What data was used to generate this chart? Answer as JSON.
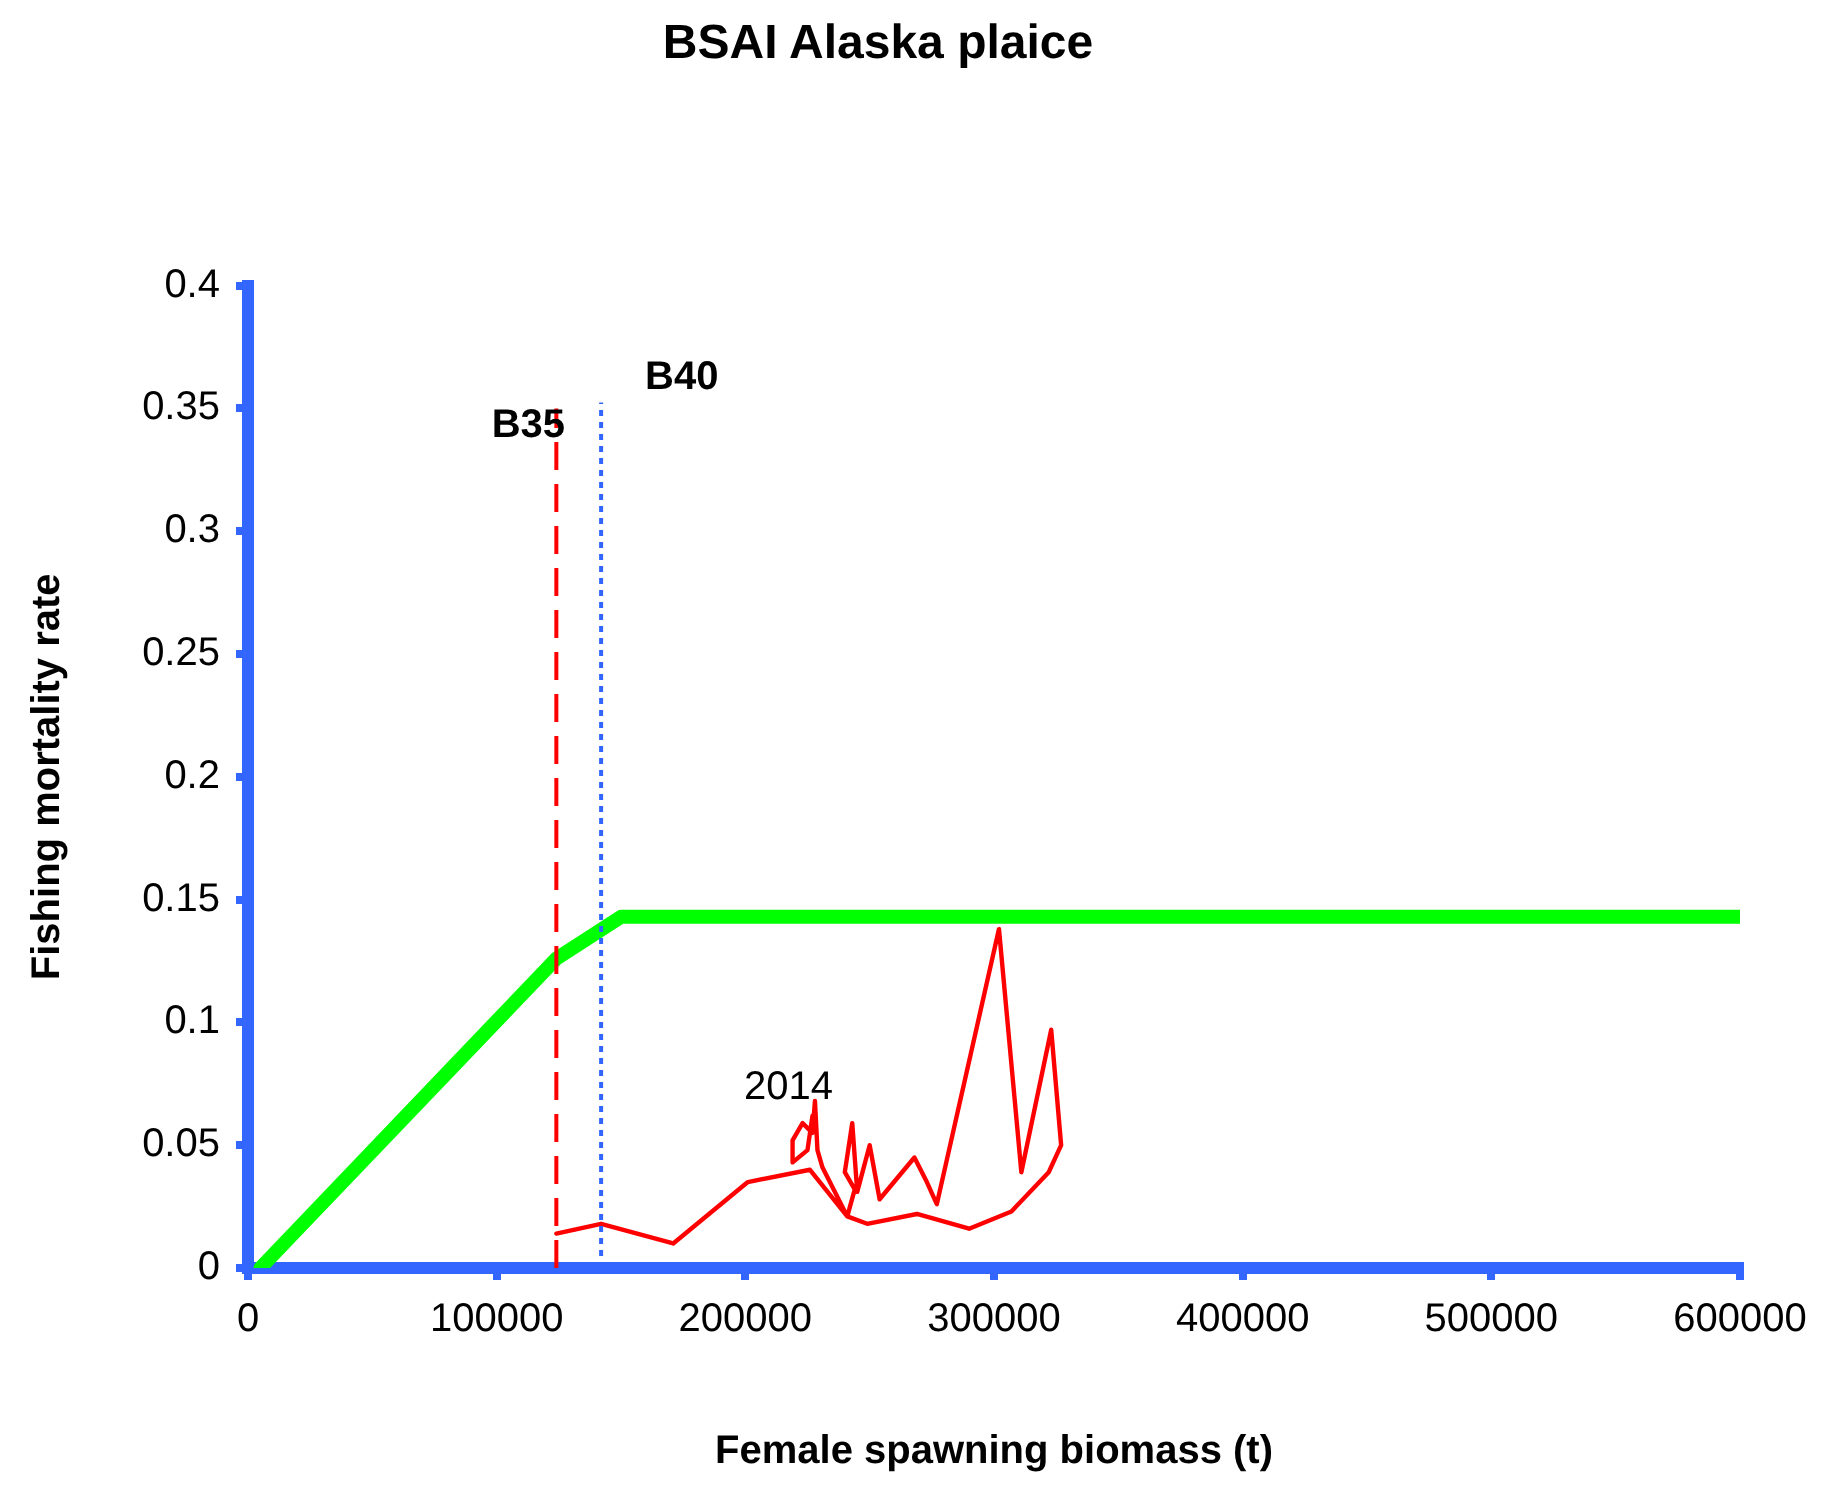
{
  "chart_data": {
    "type": "line",
    "title": "BSAI Alaska plaice",
    "xlabel": "Female spawning biomass (t)",
    "ylabel": "Fishing mortality rate",
    "xlim": [
      0,
      600000
    ],
    "xticks": [
      0,
      100000,
      200000,
      300000,
      400000,
      500000,
      600000
    ],
    "ylim": [
      0,
      0.4
    ],
    "yticks": [
      0,
      0.05,
      0.1,
      0.15,
      0.2,
      0.25,
      0.3,
      0.35,
      0.4
    ],
    "grid": false,
    "legend": false,
    "marker": "none",
    "series": [
      {
        "color": "#00ff00",
        "x": [
          5000,
          124000,
          150000,
          600000
        ],
        "values": [
          0,
          0.126,
          0.143,
          0.143
        ]
      },
      {
        "color": "#ff0000",
        "x": [
          124000,
          142000,
          171000,
          201000,
          226000,
          241000,
          249000,
          269000,
          290000,
          307000,
          322000,
          327000,
          323000,
          311000,
          302000,
          277000,
          273000,
          268000,
          254000,
          250000,
          245000,
          243000,
          240000,
          244000,
          241000,
          231000,
          229000,
          228000,
          227000,
          223000,
          219000,
          219000,
          225000,
          227000
        ],
        "values": [
          0.014,
          0.018,
          0.01,
          0.035,
          0.04,
          0.021,
          0.018,
          0.022,
          0.016,
          0.023,
          0.039,
          0.05,
          0.097,
          0.039,
          0.138,
          0.026,
          0.035,
          0.045,
          0.028,
          0.05,
          0.031,
          0.059,
          0.039,
          0.032,
          0.021,
          0.041,
          0.048,
          0.068,
          0.055,
          0.059,
          0.052,
          0.043,
          0.048,
          0.062
        ]
      }
    ],
    "ref_lines": [
      {
        "axis": "x",
        "value": 124000,
        "label": "B35",
        "color": "#ff0000",
        "line_style": "dashed"
      },
      {
        "axis": "x",
        "value": 142000,
        "label": "B40",
        "color": "#3366ff",
        "line_style": "dotted"
      }
    ],
    "annotations": [
      "2014"
    ]
  }
}
